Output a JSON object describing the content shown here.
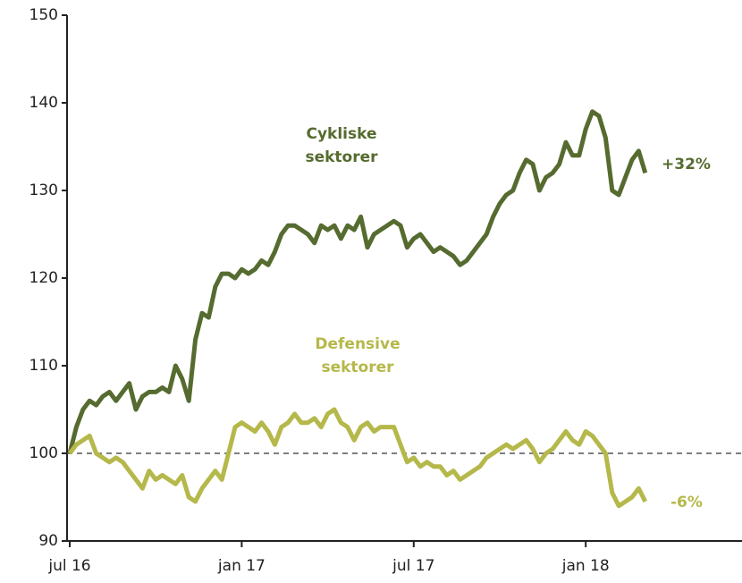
{
  "chart_data": {
    "type": "line",
    "categories": [
      "jul 16",
      null,
      null,
      null,
      null,
      null,
      null,
      null,
      null,
      null,
      null,
      null,
      null,
      null,
      null,
      null,
      null,
      null,
      null,
      null,
      null,
      null,
      null,
      null,
      null,
      null,
      "jan 17",
      null,
      null,
      null,
      null,
      null,
      null,
      null,
      null,
      null,
      null,
      null,
      null,
      null,
      null,
      null,
      null,
      null,
      null,
      null,
      null,
      null,
      null,
      null,
      null,
      null,
      "jul 17",
      null,
      null,
      null,
      null,
      null,
      null,
      null,
      null,
      null,
      null,
      null,
      null,
      null,
      null,
      null,
      null,
      null,
      null,
      null,
      null,
      null,
      null,
      null,
      null,
      null,
      "jan 18",
      null,
      null,
      null,
      null,
      null,
      null,
      null,
      null,
      null,
      null,
      null,
      null,
      null,
      null,
      null,
      null,
      null,
      null,
      null,
      null,
      null,
      null,
      null
    ],
    "series": [
      {
        "name": "Cykliske sektorer",
        "color": "#566b2f",
        "values": [
          100,
          103,
          105,
          106,
          105.5,
          106.5,
          107,
          106,
          107,
          108,
          105,
          106.5,
          107,
          107,
          107.5,
          107,
          110,
          108.5,
          106,
          113,
          116,
          115.5,
          119,
          120.5,
          120.5,
          120,
          121,
          120.5,
          121,
          122,
          121.5,
          123,
          125,
          126,
          126,
          125.5,
          125,
          124,
          126,
          125.5,
          126,
          124.5,
          126,
          125.5,
          127,
          123.5,
          125,
          125.5,
          126,
          126.5,
          126,
          123.5,
          124.5,
          125,
          124,
          123,
          123.5,
          123,
          122.5,
          121.5,
          122,
          123,
          124,
          125,
          127,
          128.5,
          129.5,
          130,
          132,
          133.5,
          133,
          130,
          131.5,
          132,
          133,
          135.5,
          134,
          134,
          137,
          139,
          138.5,
          136,
          130,
          129.5,
          131.5,
          133.5,
          134.5,
          132,
          null,
          null,
          null,
          null,
          null,
          null,
          null,
          null,
          null,
          null,
          null,
          null,
          null,
          null
        ]
      },
      {
        "name": "Defensive sektorer",
        "color": "#b5b84a",
        "values": [
          100,
          101,
          101.5,
          102,
          100,
          99.5,
          99,
          99.5,
          99,
          98,
          97,
          96,
          98,
          97,
          97.5,
          97,
          96.5,
          97.5,
          95,
          94.5,
          96,
          97,
          98,
          97,
          100,
          103,
          103.5,
          103,
          102.5,
          103.5,
          102.5,
          101,
          103,
          103.5,
          104.5,
          103.5,
          103.5,
          104,
          103,
          104.5,
          105,
          103.5,
          103,
          101.5,
          103,
          103.5,
          102.5,
          103,
          103,
          103,
          101,
          99,
          99.5,
          98.5,
          99,
          98.5,
          98.5,
          97.5,
          98,
          97,
          97.5,
          98,
          98.5,
          99.5,
          100,
          100.5,
          101,
          100.5,
          101,
          101.5,
          100.5,
          99,
          100,
          100.5,
          101.5,
          102.5,
          101.5,
          101,
          102.5,
          102,
          101,
          100,
          95.5,
          94,
          94.5,
          95,
          96,
          94.5,
          null,
          null,
          null,
          null,
          null,
          null,
          null,
          null,
          null,
          null,
          null,
          null,
          null,
          null
        ]
      }
    ],
    "annotations": [
      "Cykliske",
      "sektorer",
      "Defensive",
      "sektorer",
      "+32%",
      "-6%"
    ],
    "reference_line": 100,
    "ylim": [
      90,
      150
    ],
    "yticks": [
      90,
      100,
      110,
      120,
      130,
      140,
      150
    ]
  }
}
